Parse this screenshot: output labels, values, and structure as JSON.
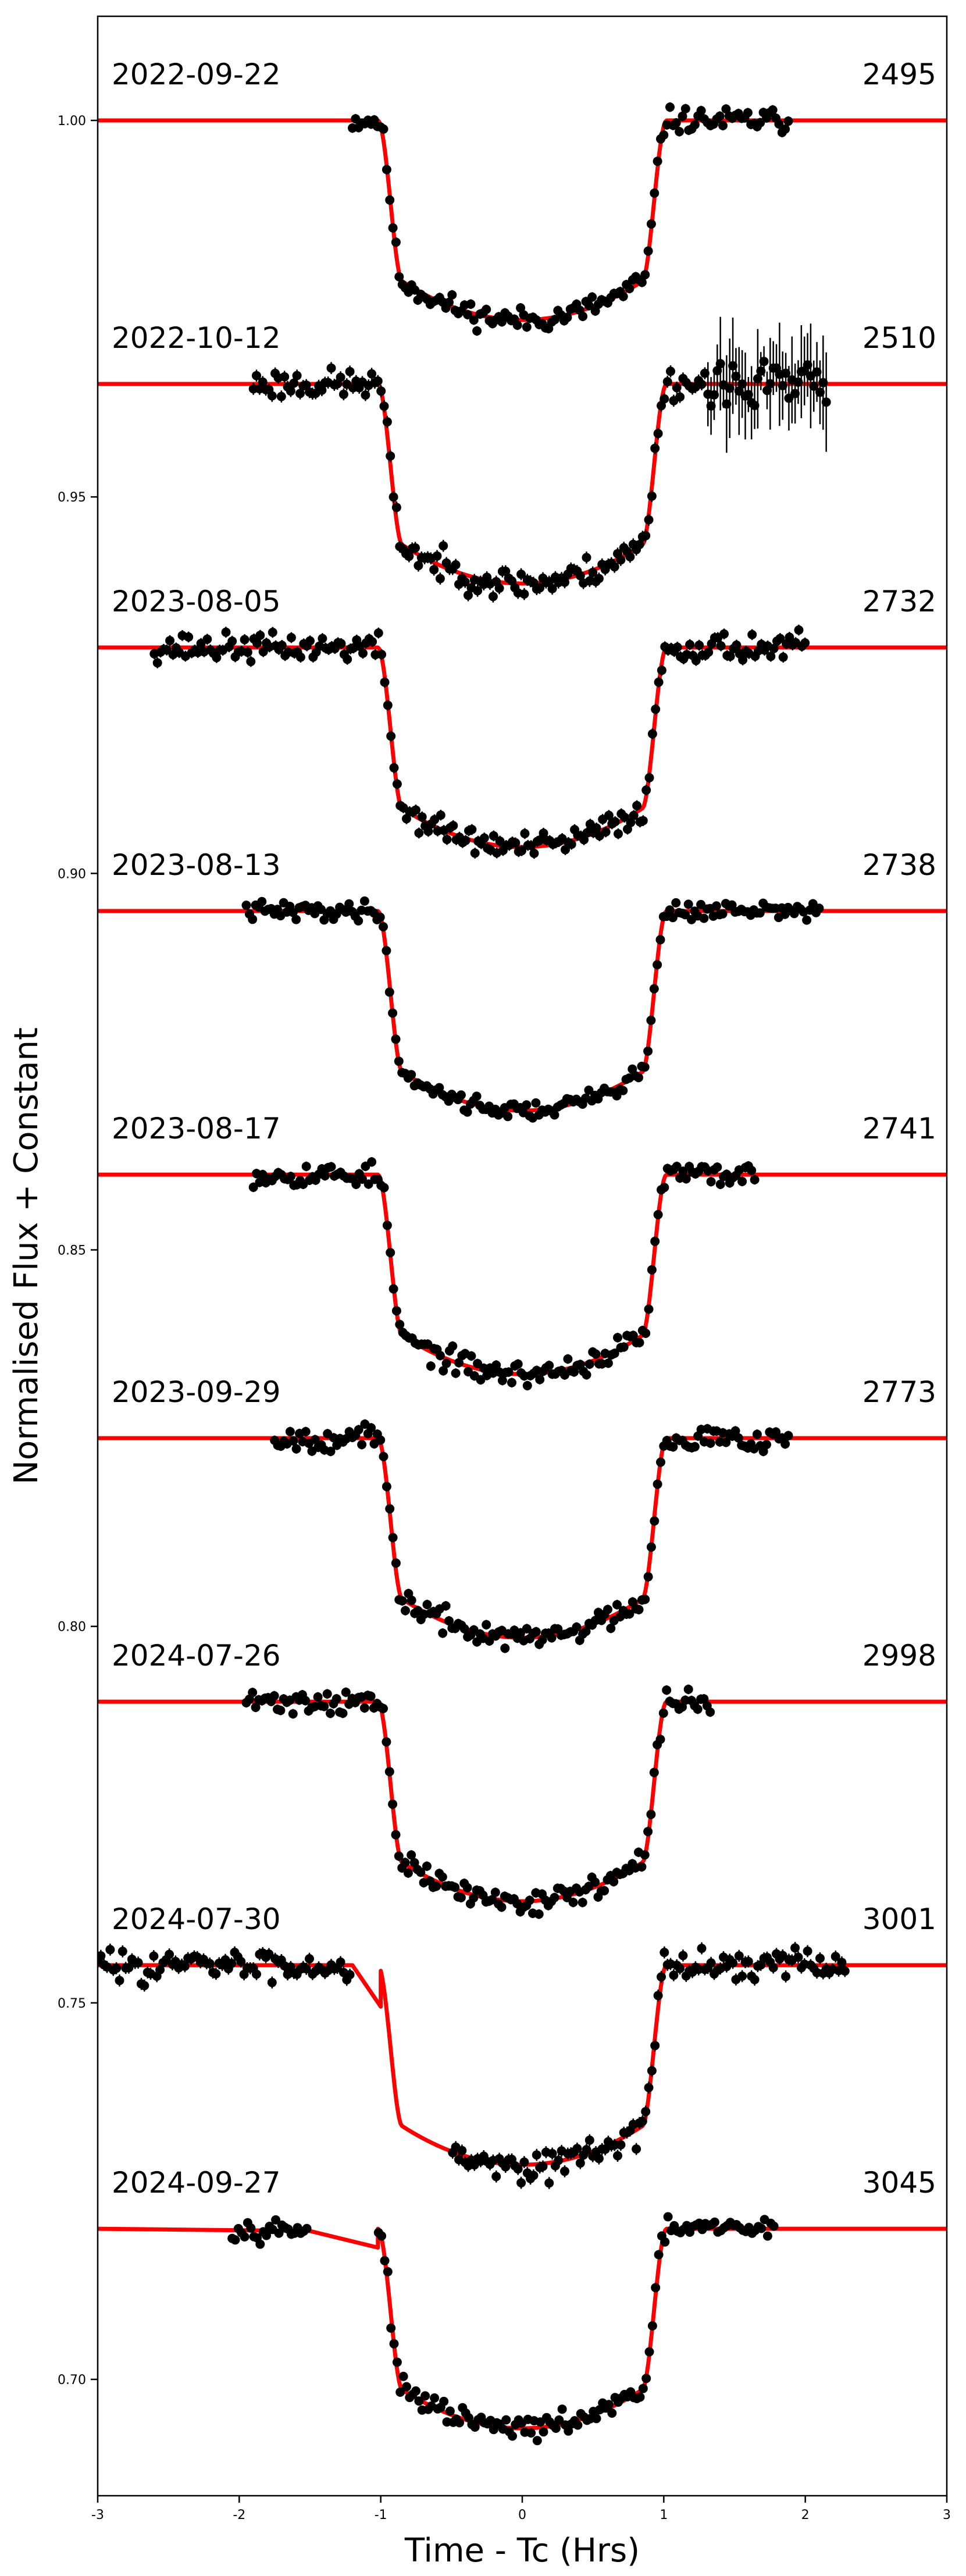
{
  "chart_data": {
    "type": "line",
    "xlabel": "Time - Tc (Hrs)",
    "ylabel": "Normalised Flux + Constant",
    "xlim": [
      -3,
      3
    ],
    "ylim": [
      0.686,
      1.014
    ],
    "xticks": [
      -3,
      -2,
      -1,
      0,
      1,
      2,
      3
    ],
    "yticks": [
      1.0,
      0.95,
      0.9,
      0.85,
      0.8,
      0.75,
      0.7
    ],
    "ytick_labels": [
      "1.00",
      "0.95",
      "0.90",
      "0.85",
      "0.80",
      "0.75",
      "0.70"
    ],
    "grid": false,
    "model_color": "#ff0000",
    "data_color": "#000000",
    "transit_depth": 0.0265,
    "series": [
      {
        "date": "2022-09-22",
        "epoch": "2495",
        "baseline": 1.0,
        "data_range": [
          -1.2,
          1.9
        ],
        "noise": 0.0008,
        "offset": 0.0,
        "seed": 11
      },
      {
        "date": "2022-10-12",
        "epoch": "2510",
        "baseline": 0.965,
        "data_range": [
          -1.9,
          2.15
        ],
        "noise": 0.001,
        "offset": 0.0,
        "seed": 23,
        "noisy_tail": [
          1.3,
          2.15
        ]
      },
      {
        "date": "2023-08-05",
        "epoch": "2732",
        "baseline": 0.93,
        "data_range": [
          -2.6,
          2.0
        ],
        "noise": 0.0009,
        "offset": 0.0,
        "seed": 37
      },
      {
        "date": "2023-08-13",
        "epoch": "2738",
        "baseline": 0.895,
        "data_range": [
          -1.95,
          2.1
        ],
        "noise": 0.0006,
        "offset": 0.0,
        "seed": 41
      },
      {
        "date": "2023-08-17",
        "epoch": "2741",
        "baseline": 0.86,
        "data_range": [
          -1.9,
          1.65
        ],
        "noise": 0.0008,
        "offset": 0.0,
        "seed": 53
      },
      {
        "date": "2023-09-29",
        "epoch": "2773",
        "baseline": 0.825,
        "data_range": [
          -1.75,
          1.9
        ],
        "noise": 0.0008,
        "offset": 0.0,
        "seed": 67
      },
      {
        "date": "2024-07-26",
        "epoch": "2998",
        "baseline": 0.79,
        "data_range": [
          -1.95,
          1.35
        ],
        "noise": 0.0008,
        "offset": 0.0,
        "seed": 71
      },
      {
        "date": "2024-07-30",
        "epoch": "3001",
        "baseline": 0.755,
        "data_range": [
          -3.0,
          2.3
        ],
        "noise": 0.001,
        "offset": 0.0,
        "seed": 83,
        "gap": [
          -1.2,
          -0.5
        ],
        "gap_model_points": [
          [
            -1.2,
            0.755
          ],
          [
            -1.0,
            0.7495
          ]
        ]
      },
      {
        "date": "2024-09-27",
        "epoch": "3045",
        "baseline": 0.72,
        "data_range": [
          -2.05,
          1.8
        ],
        "noise": 0.0007,
        "offset": 0.0,
        "seed": 97,
        "gap": [
          -1.5,
          -1.02
        ],
        "gap_model_points": [
          [
            -1.5,
            0.7197
          ],
          [
            -1.02,
            0.7175
          ]
        ]
      }
    ]
  }
}
